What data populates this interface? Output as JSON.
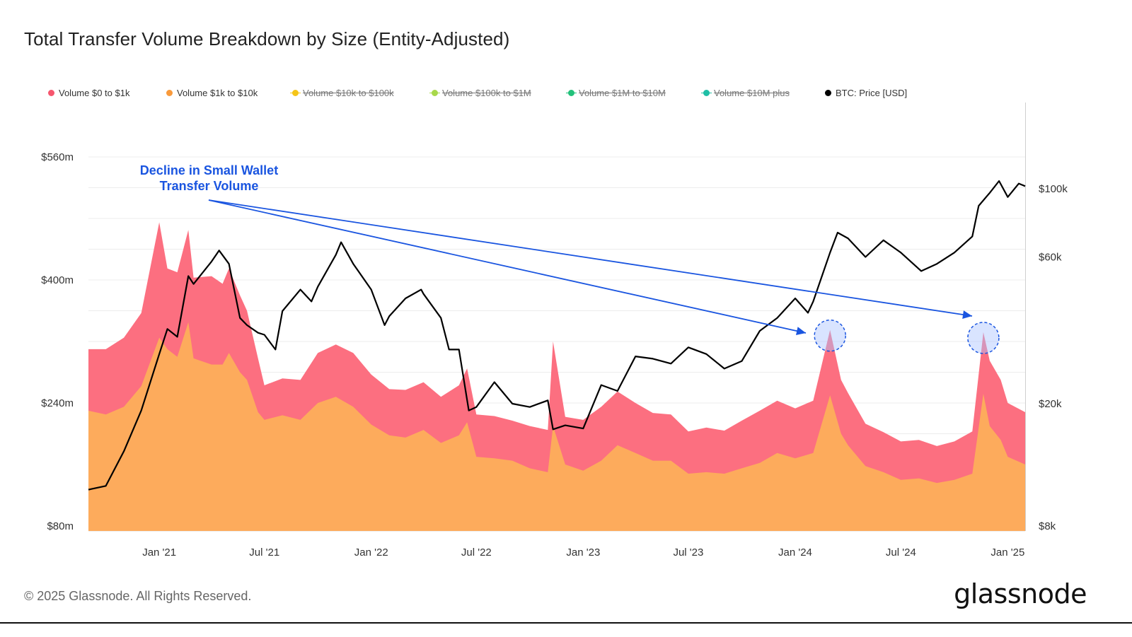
{
  "title": "Total Transfer Volume Breakdown by Size (Entity-Adjusted)",
  "legend": [
    {
      "label": "Volume $0 to $1k",
      "color": "#f6566e",
      "active": true
    },
    {
      "label": "Volume $1k to $10k",
      "color": "#f99a3b",
      "active": true
    },
    {
      "label": "Volume $10k to $100k",
      "color": "#f5c518",
      "active": false
    },
    {
      "label": "Volume $100k to $1M",
      "color": "#a8d84a",
      "active": false
    },
    {
      "label": "Volume $1M to $10M",
      "color": "#22c17a",
      "active": false
    },
    {
      "label": "Volume $10M plus",
      "color": "#1fbfa6",
      "active": false
    },
    {
      "label": "BTC: Price [USD]",
      "color": "#000000",
      "active": true
    }
  ],
  "annotation": {
    "line1": "Decline in Small Wallet",
    "line2": "Transfer Volume"
  },
  "footer": "© 2025 Glassnode. All Rights Reserved.",
  "brand": "glassnode",
  "chart_data": {
    "type": "area",
    "x_ticks": [
      "Jan '21",
      "Jul '21",
      "Jan '22",
      "Jul '22",
      "Jan '23",
      "Jul '23",
      "Jan '24",
      "Jul '24",
      "Jan '25"
    ],
    "x_tick_dates": [
      "2021-01-01",
      "2021-07-01",
      "2022-01-01",
      "2022-07-01",
      "2023-01-01",
      "2023-07-01",
      "2024-01-01",
      "2024-07-01",
      "2025-01-01"
    ],
    "x_range": [
      "2020-09-01",
      "2025-01-31"
    ],
    "y_left": {
      "ticks": [
        "$560m",
        "$400m",
        "$240m",
        "$80m"
      ],
      "tick_values": [
        560,
        400,
        240,
        80
      ],
      "range": [
        80,
        580
      ],
      "unit": "USD millions"
    },
    "y_right": {
      "ticks": [
        "$100k",
        "$60k",
        "$20k",
        "$8k"
      ],
      "tick_values": [
        100000,
        60000,
        20000,
        8000
      ],
      "scale": "log"
    },
    "stacked": true,
    "series": [
      {
        "name": "Volume $1k to $10k",
        "color": "#fdab5c",
        "axis": "left",
        "points": [
          [
            "2020-09-01",
            230
          ],
          [
            "2020-10-01",
            225
          ],
          [
            "2020-11-01",
            235
          ],
          [
            "2020-12-01",
            262
          ],
          [
            "2021-01-01",
            325
          ],
          [
            "2021-01-15",
            310
          ],
          [
            "2021-02-01",
            300
          ],
          [
            "2021-02-20",
            345
          ],
          [
            "2021-03-01",
            298
          ],
          [
            "2021-04-01",
            290
          ],
          [
            "2021-04-20",
            290
          ],
          [
            "2021-05-01",
            305
          ],
          [
            "2021-05-20",
            280
          ],
          [
            "2021-06-01",
            270
          ],
          [
            "2021-06-20",
            228
          ],
          [
            "2021-07-01",
            218
          ],
          [
            "2021-08-01",
            224
          ],
          [
            "2021-09-01",
            218
          ],
          [
            "2021-10-01",
            240
          ],
          [
            "2021-11-01",
            248
          ],
          [
            "2021-12-01",
            235
          ],
          [
            "2022-01-01",
            212
          ],
          [
            "2022-02-01",
            198
          ],
          [
            "2022-03-01",
            195
          ],
          [
            "2022-04-01",
            205
          ],
          [
            "2022-05-01",
            188
          ],
          [
            "2022-06-01",
            198
          ],
          [
            "2022-06-15",
            215
          ],
          [
            "2022-07-01",
            170
          ],
          [
            "2022-08-01",
            168
          ],
          [
            "2022-09-01",
            165
          ],
          [
            "2022-10-01",
            155
          ],
          [
            "2022-11-01",
            150
          ],
          [
            "2022-11-10",
            210
          ],
          [
            "2022-12-01",
            160
          ],
          [
            "2023-01-01",
            152
          ],
          [
            "2023-02-01",
            165
          ],
          [
            "2023-03-01",
            185
          ],
          [
            "2023-04-01",
            175
          ],
          [
            "2023-05-01",
            165
          ],
          [
            "2023-06-01",
            165
          ],
          [
            "2023-07-01",
            148
          ],
          [
            "2023-08-01",
            150
          ],
          [
            "2023-09-01",
            148
          ],
          [
            "2023-10-01",
            155
          ],
          [
            "2023-11-01",
            162
          ],
          [
            "2023-12-01",
            175
          ],
          [
            "2024-01-01",
            168
          ],
          [
            "2024-02-01",
            175
          ],
          [
            "2024-03-01",
            250
          ],
          [
            "2024-03-20",
            200
          ],
          [
            "2024-04-01",
            185
          ],
          [
            "2024-05-01",
            158
          ],
          [
            "2024-06-01",
            150
          ],
          [
            "2024-07-01",
            140
          ],
          [
            "2024-08-01",
            142
          ],
          [
            "2024-09-01",
            136
          ],
          [
            "2024-10-01",
            140
          ],
          [
            "2024-11-01",
            148
          ],
          [
            "2024-11-20",
            252
          ],
          [
            "2024-12-01",
            210
          ],
          [
            "2024-12-20",
            192
          ],
          [
            "2025-01-01",
            170
          ],
          [
            "2025-01-31",
            160
          ]
        ]
      },
      {
        "name": "Volume $0 to $1k",
        "color": "#fc6f80",
        "axis": "left",
        "points": [
          [
            "2020-09-01",
            80
          ],
          [
            "2020-10-01",
            85
          ],
          [
            "2020-11-01",
            90
          ],
          [
            "2020-12-01",
            95
          ],
          [
            "2021-01-01",
            150
          ],
          [
            "2021-01-15",
            105
          ],
          [
            "2021-02-01",
            110
          ],
          [
            "2021-02-20",
            120
          ],
          [
            "2021-03-01",
            105
          ],
          [
            "2021-04-01",
            115
          ],
          [
            "2021-04-20",
            105
          ],
          [
            "2021-05-01",
            110
          ],
          [
            "2021-05-20",
            100
          ],
          [
            "2021-06-01",
            90
          ],
          [
            "2021-06-20",
            70
          ],
          [
            "2021-07-01",
            45
          ],
          [
            "2021-08-01",
            48
          ],
          [
            "2021-09-01",
            52
          ],
          [
            "2021-10-01",
            65
          ],
          [
            "2021-11-01",
            68
          ],
          [
            "2021-12-01",
            70
          ],
          [
            "2022-01-01",
            65
          ],
          [
            "2022-02-01",
            60
          ],
          [
            "2022-03-01",
            62
          ],
          [
            "2022-04-01",
            62
          ],
          [
            "2022-05-01",
            60
          ],
          [
            "2022-06-01",
            65
          ],
          [
            "2022-06-15",
            70
          ],
          [
            "2022-07-01",
            55
          ],
          [
            "2022-08-01",
            55
          ],
          [
            "2022-09-01",
            52
          ],
          [
            "2022-10-01",
            55
          ],
          [
            "2022-11-01",
            55
          ],
          [
            "2022-11-10",
            110
          ],
          [
            "2022-12-01",
            62
          ],
          [
            "2023-01-01",
            66
          ],
          [
            "2023-02-01",
            70
          ],
          [
            "2023-03-01",
            70
          ],
          [
            "2023-04-01",
            65
          ],
          [
            "2023-05-01",
            62
          ],
          [
            "2023-06-01",
            60
          ],
          [
            "2023-07-01",
            55
          ],
          [
            "2023-08-01",
            58
          ],
          [
            "2023-09-01",
            56
          ],
          [
            "2023-10-01",
            62
          ],
          [
            "2023-11-01",
            68
          ],
          [
            "2023-12-01",
            68
          ],
          [
            "2024-01-01",
            65
          ],
          [
            "2024-02-01",
            68
          ],
          [
            "2024-03-01",
            85
          ],
          [
            "2024-03-20",
            70
          ],
          [
            "2024-04-01",
            68
          ],
          [
            "2024-05-01",
            55
          ],
          [
            "2024-06-01",
            52
          ],
          [
            "2024-07-01",
            50
          ],
          [
            "2024-08-01",
            50
          ],
          [
            "2024-09-01",
            48
          ],
          [
            "2024-10-01",
            50
          ],
          [
            "2024-11-01",
            55
          ],
          [
            "2024-11-20",
            80
          ],
          [
            "2024-12-01",
            85
          ],
          [
            "2024-12-20",
            78
          ],
          [
            "2025-01-01",
            70
          ],
          [
            "2025-01-31",
            68
          ]
        ]
      },
      {
        "name": "BTC: Price [USD]",
        "color": "#000000",
        "axis": "right",
        "points": [
          [
            "2020-09-01",
            10500
          ],
          [
            "2020-10-01",
            10800
          ],
          [
            "2020-11-01",
            14000
          ],
          [
            "2020-12-01",
            19000
          ],
          [
            "2021-01-01",
            29000
          ],
          [
            "2021-01-15",
            35000
          ],
          [
            "2021-02-01",
            33000
          ],
          [
            "2021-02-20",
            52000
          ],
          [
            "2021-03-01",
            49000
          ],
          [
            "2021-04-01",
            58000
          ],
          [
            "2021-04-14",
            63000
          ],
          [
            "2021-05-01",
            57000
          ],
          [
            "2021-05-20",
            38000
          ],
          [
            "2021-06-01",
            36000
          ],
          [
            "2021-06-20",
            34000
          ],
          [
            "2021-07-01",
            33500
          ],
          [
            "2021-07-20",
            30000
          ],
          [
            "2021-08-01",
            40000
          ],
          [
            "2021-09-01",
            47000
          ],
          [
            "2021-09-20",
            43000
          ],
          [
            "2021-10-01",
            48000
          ],
          [
            "2021-11-01",
            61000
          ],
          [
            "2021-11-10",
            67000
          ],
          [
            "2021-12-01",
            57000
          ],
          [
            "2022-01-01",
            47000
          ],
          [
            "2022-01-24",
            36000
          ],
          [
            "2022-02-01",
            38500
          ],
          [
            "2022-03-01",
            44000
          ],
          [
            "2022-03-28",
            47000
          ],
          [
            "2022-04-01",
            45500
          ],
          [
            "2022-05-01",
            38000
          ],
          [
            "2022-05-15",
            30000
          ],
          [
            "2022-06-01",
            30000
          ],
          [
            "2022-06-18",
            19000
          ],
          [
            "2022-07-01",
            19500
          ],
          [
            "2022-08-01",
            23500
          ],
          [
            "2022-09-01",
            20000
          ],
          [
            "2022-10-01",
            19500
          ],
          [
            "2022-11-01",
            20500
          ],
          [
            "2022-11-10",
            16500
          ],
          [
            "2022-12-01",
            17000
          ],
          [
            "2023-01-01",
            16600
          ],
          [
            "2023-02-01",
            23000
          ],
          [
            "2023-03-01",
            22000
          ],
          [
            "2023-04-01",
            28500
          ],
          [
            "2023-05-01",
            28000
          ],
          [
            "2023-06-01",
            27000
          ],
          [
            "2023-07-01",
            30500
          ],
          [
            "2023-08-01",
            29000
          ],
          [
            "2023-09-01",
            26000
          ],
          [
            "2023-10-01",
            27500
          ],
          [
            "2023-11-01",
            34500
          ],
          [
            "2023-12-01",
            38000
          ],
          [
            "2024-01-01",
            44000
          ],
          [
            "2024-01-23",
            39500
          ],
          [
            "2024-02-01",
            43000
          ],
          [
            "2024-03-01",
            62000
          ],
          [
            "2024-03-14",
            72000
          ],
          [
            "2024-04-01",
            69000
          ],
          [
            "2024-05-01",
            60000
          ],
          [
            "2024-06-01",
            68000
          ],
          [
            "2024-07-01",
            62000
          ],
          [
            "2024-08-05",
            54000
          ],
          [
            "2024-09-01",
            57000
          ],
          [
            "2024-10-01",
            62000
          ],
          [
            "2024-11-01",
            70000
          ],
          [
            "2024-11-12",
            88000
          ],
          [
            "2024-12-01",
            97000
          ],
          [
            "2024-12-17",
            106000
          ],
          [
            "2025-01-01",
            94000
          ],
          [
            "2025-01-20",
            104000
          ],
          [
            "2025-01-31",
            102000
          ]
        ]
      }
    ],
    "grid": true,
    "legend_position": "top-left",
    "highlighted_peaks": [
      "2024-03-01",
      "2024-11-20"
    ]
  }
}
